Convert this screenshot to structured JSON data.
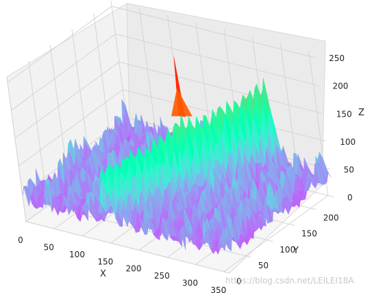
{
  "chart_data": {
    "type": "surface3d",
    "title": "",
    "xlabel": "X",
    "ylabel": "Y",
    "zlabel": "Z",
    "x_ticks": [
      0,
      50,
      100,
      150,
      200,
      250,
      300,
      350
    ],
    "y_ticks": [
      0,
      50,
      100,
      150,
      200
    ],
    "z_ticks": [
      0,
      50,
      100,
      150,
      200,
      250
    ],
    "xlim": [
      0,
      360
    ],
    "ylim": [
      0,
      240
    ],
    "zlim": [
      0,
      260
    ],
    "colormap": "rainbow",
    "grid": true,
    "background_noise_z": [
      20,
      120
    ],
    "diagonal_ridge_z": [
      130,
      180
    ],
    "peak": {
      "x": 180,
      "y": 150,
      "z": 260
    }
  },
  "watermark": "https://blog.csdn.net/LEILEI18A"
}
